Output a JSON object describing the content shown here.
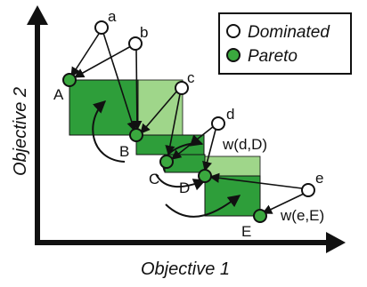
{
  "axes": {
    "x_title": "Objective 1",
    "y_title": "Objective 2"
  },
  "legend": {
    "dominated_label": "Dominated",
    "pareto_label": "Pareto"
  },
  "pareto_points": [
    {
      "id": "A",
      "label": "A"
    },
    {
      "id": "B",
      "label": "B"
    },
    {
      "id": "C",
      "label": "C"
    },
    {
      "id": "D",
      "label": "D"
    },
    {
      "id": "E",
      "label": "E"
    }
  ],
  "dominated_points": [
    {
      "id": "a",
      "label": "a"
    },
    {
      "id": "b",
      "label": "b"
    },
    {
      "id": "c",
      "label": "c"
    },
    {
      "id": "d",
      "label": "d"
    },
    {
      "id": "e",
      "label": "e"
    }
  ],
  "region_labels": {
    "wdD": "w(d,D)",
    "weE": "w(e,E)"
  },
  "colors": {
    "pareto_fill": "#3aa83e",
    "region_dark": "#2e9e3a",
    "region_light": "#9fd68a",
    "dominated_fill": "#ffffff",
    "line": "#111111"
  }
}
